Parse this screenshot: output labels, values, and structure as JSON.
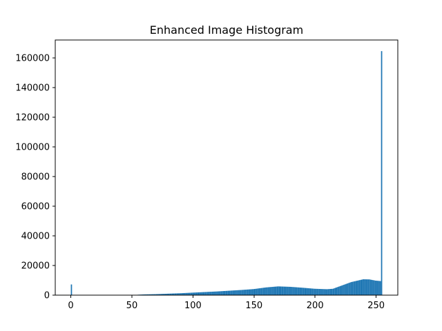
{
  "chart_data": {
    "type": "bar",
    "title": "Enhanced Image Histogram",
    "xlabel": "",
    "ylabel": "",
    "xlim": [
      -12.75,
      267.75
    ],
    "ylim": [
      0,
      172000
    ],
    "x_ticks": [
      0,
      50,
      100,
      150,
      200,
      250
    ],
    "y_ticks": [
      0,
      20000,
      40000,
      60000,
      80000,
      100000,
      120000,
      140000,
      160000
    ],
    "bar_color": "#1f77b4",
    "grid": false,
    "legend": "none",
    "bins": {
      "x": [
        0,
        55,
        60,
        70,
        80,
        90,
        100,
        110,
        120,
        130,
        140,
        150,
        160,
        170,
        180,
        190,
        200,
        210,
        215,
        220,
        230,
        240,
        245,
        250,
        254,
        255
      ],
      "y": [
        7200,
        300,
        500,
        700,
        1000,
        1300,
        1700,
        2100,
        2500,
        3000,
        3500,
        4100,
        5200,
        5900,
        5600,
        5000,
        4300,
        4000,
        4300,
        5800,
        8800,
        10700,
        10600,
        9800,
        9500,
        164500
      ]
    }
  }
}
